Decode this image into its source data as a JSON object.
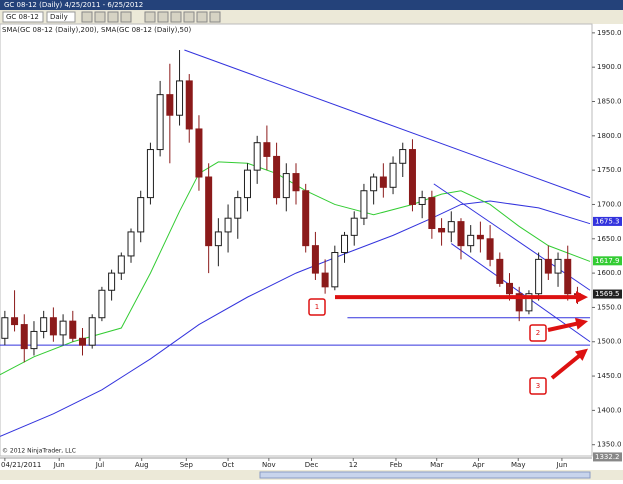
{
  "ui": {
    "window_title": "GC 08-12 (Daily)   4/25/2011 - 6/25/2012",
    "instrument": "GC 08-12",
    "period": "Daily",
    "copyright": "© 2012 NinjaTrader, LLC"
  },
  "chart_data": {
    "type": "candlestick",
    "indicator_label": "SMA(GC 08-12 (Daily),200), SMA(GC 08-12 (Daily),50)",
    "up_color": "#1f1f1f",
    "down_color": "#8b1a1a",
    "x": [
      0,
      1,
      2,
      3,
      4,
      5,
      6,
      7,
      8,
      9,
      10,
      11,
      12,
      13,
      14,
      15,
      16,
      17,
      18,
      19,
      20,
      21,
      22,
      23,
      24,
      25,
      26,
      27,
      28,
      29,
      30,
      31,
      32,
      33,
      34,
      35,
      36,
      37,
      38,
      39,
      40,
      41,
      42,
      43,
      44,
      45,
      46,
      47,
      48,
      49,
      50,
      51,
      52,
      53,
      54,
      55,
      56,
      57,
      58,
      59
    ],
    "open": [
      1505,
      1535,
      1525,
      1490,
      1515,
      1535,
      1510,
      1530,
      1505,
      1495,
      1535,
      1575,
      1600,
      1625,
      1660,
      1710,
      1780,
      1860,
      1830,
      1880,
      1810,
      1740,
      1640,
      1660,
      1680,
      1710,
      1750,
      1790,
      1770,
      1710,
      1745,
      1720,
      1640,
      1600,
      1580,
      1630,
      1655,
      1680,
      1720,
      1740,
      1725,
      1760,
      1780,
      1700,
      1710,
      1665,
      1660,
      1675,
      1640,
      1655,
      1650,
      1620,
      1585,
      1570,
      1545,
      1570,
      1620,
      1600,
      1620,
      1570
    ],
    "high": [
      1545,
      1575,
      1540,
      1530,
      1545,
      1550,
      1540,
      1545,
      1520,
      1540,
      1580,
      1605,
      1630,
      1665,
      1720,
      1790,
      1880,
      1905,
      1925,
      1890,
      1830,
      1760,
      1680,
      1700,
      1720,
      1760,
      1800,
      1815,
      1790,
      1760,
      1760,
      1730,
      1660,
      1620,
      1640,
      1660,
      1690,
      1730,
      1745,
      1760,
      1770,
      1790,
      1795,
      1720,
      1720,
      1680,
      1690,
      1680,
      1670,
      1675,
      1670,
      1630,
      1600,
      1580,
      1575,
      1630,
      1640,
      1630,
      1640,
      1580
    ],
    "low": [
      1495,
      1515,
      1470,
      1480,
      1505,
      1500,
      1495,
      1500,
      1480,
      1490,
      1530,
      1560,
      1590,
      1615,
      1645,
      1700,
      1770,
      1760,
      1815,
      1790,
      1720,
      1600,
      1610,
      1630,
      1650,
      1690,
      1730,
      1750,
      1700,
      1690,
      1700,
      1630,
      1590,
      1570,
      1575,
      1615,
      1640,
      1670,
      1700,
      1710,
      1715,
      1740,
      1690,
      1680,
      1650,
      1640,
      1645,
      1620,
      1630,
      1630,
      1610,
      1580,
      1560,
      1530,
      1540,
      1560,
      1590,
      1580,
      1560,
      1555
    ],
    "close": [
      1535,
      1525,
      1490,
      1515,
      1535,
      1510,
      1530,
      1505,
      1495,
      1535,
      1575,
      1600,
      1625,
      1660,
      1710,
      1780,
      1860,
      1830,
      1880,
      1810,
      1740,
      1640,
      1660,
      1680,
      1710,
      1750,
      1790,
      1770,
      1710,
      1745,
      1720,
      1640,
      1600,
      1580,
      1630,
      1655,
      1680,
      1720,
      1740,
      1725,
      1760,
      1780,
      1700,
      1710,
      1665,
      1660,
      1675,
      1640,
      1655,
      1650,
      1620,
      1585,
      1570,
      1545,
      1570,
      1620,
      1600,
      1620,
      1570,
      1569.5
    ],
    "lines": [
      {
        "color": "#3333dd",
        "x": [
          -0.5,
          5,
          10,
          15,
          20,
          25,
          30,
          35,
          40,
          44,
          47,
          50,
          55,
          60.3
        ],
        "values": [
          1362,
          1395,
          1430,
          1475,
          1525,
          1565,
          1600,
          1628,
          1655,
          1680,
          1700,
          1705,
          1695,
          1672
        ]
      },
      {
        "color": "#33cc33",
        "x": [
          -0.5,
          3,
          7,
          12,
          15,
          18,
          20,
          22,
          25,
          28,
          31,
          34,
          38,
          42,
          45,
          47,
          50,
          53,
          56,
          60.3
        ],
        "values": [
          1452,
          1478,
          1500,
          1520,
          1600,
          1690,
          1745,
          1762,
          1760,
          1745,
          1720,
          1700,
          1685,
          1700,
          1715,
          1720,
          1700,
          1668,
          1640,
          1617
        ]
      }
    ],
    "trendlines": [
      {
        "color": "#3333dd",
        "x": [
          18.5,
          60.3
        ],
        "values": [
          1925,
          1710
        ]
      },
      {
        "color": "#3333dd",
        "x": [
          -0.5,
          60.3
        ],
        "values": [
          1495,
          1495
        ]
      },
      {
        "color": "#3333dd",
        "x": [
          35.3,
          60.3
        ],
        "values": [
          1535,
          1535
        ]
      },
      {
        "color": "#3333dd",
        "x": [
          44.2,
          60.3
        ],
        "values": [
          1730,
          1575
        ]
      },
      {
        "color": "#3333dd",
        "x": [
          46,
          60.3
        ],
        "values": [
          1643,
          1500
        ]
      }
    ],
    "annotations": [
      {
        "label": "1",
        "value": 1565
      },
      {
        "label": "2",
        "value": 1530
      },
      {
        "label": "3",
        "value": 1490
      }
    ],
    "axis_markers": [
      {
        "label": "1675.3",
        "value": 1675.3,
        "color": "#3333dd"
      },
      {
        "label": "1617.9",
        "value": 1617.9,
        "color": "#33cc33"
      },
      {
        "label": "1569.5",
        "value": 1569.5,
        "color": "#222222"
      },
      {
        "label": "1332.2",
        "value": 1332.2,
        "color": "#888888"
      }
    ],
    "xlim": [
      -0.5,
      60.5
    ],
    "ylim": [
      1335,
      1960
    ],
    "xticks": [
      {
        "value": 0,
        "label": "04/21/2011"
      },
      {
        "value": 5.6,
        "label": "Jun"
      },
      {
        "value": 9.8,
        "label": "Jul"
      },
      {
        "value": 14.1,
        "label": "Aug"
      },
      {
        "value": 18.7,
        "label": "Sep"
      },
      {
        "value": 23,
        "label": "Oct"
      },
      {
        "value": 27.2,
        "label": "Nov"
      },
      {
        "value": 31.6,
        "label": "Dec"
      },
      {
        "value": 35.9,
        "label": "12"
      },
      {
        "value": 40.3,
        "label": "Feb"
      },
      {
        "value": 44.5,
        "label": "Mar"
      },
      {
        "value": 48.8,
        "label": "Apr"
      },
      {
        "value": 52.9,
        "label": "May"
      },
      {
        "value": 57.4,
        "label": "Jun"
      }
    ],
    "yticks": [
      {
        "value": 1350,
        "label": "1350.0"
      },
      {
        "value": 1400,
        "label": "1400.0"
      },
      {
        "value": 1450,
        "label": "1450.0"
      },
      {
        "value": 1500,
        "label": "1500.0"
      },
      {
        "value": 1550,
        "label": "1550.0"
      },
      {
        "value": 1600,
        "label": "1600.0"
      },
      {
        "value": 1650,
        "label": "1650.0"
      },
      {
        "value": 1700,
        "label": "1700.0"
      },
      {
        "value": 1750,
        "label": "1750.0"
      },
      {
        "value": 1800,
        "label": "1800.0"
      },
      {
        "value": 1850,
        "label": "1850.0"
      },
      {
        "value": 1900,
        "label": "1900.0"
      },
      {
        "value": 1950,
        "label": "1950.0"
      }
    ]
  }
}
